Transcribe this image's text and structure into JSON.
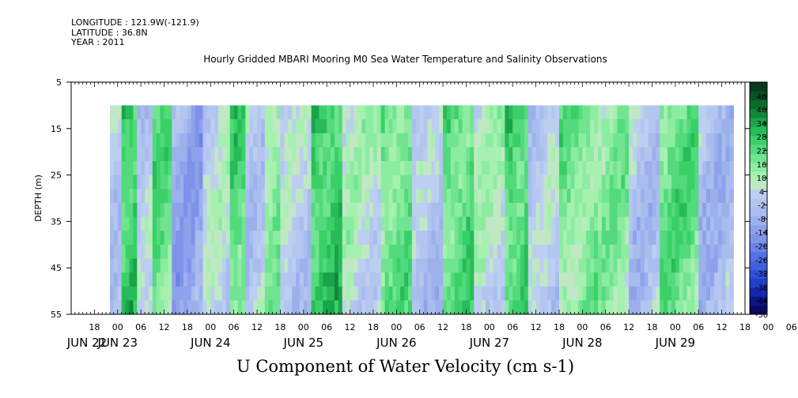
{
  "header": {
    "longitude": "LONGITUDE : 121.9W(-121.9)",
    "latitude": "LATITUDE : 36.8N",
    "year": "YEAR : 2011"
  },
  "colors": {
    "scale": [
      "#0a0a60",
      "#0c1580",
      "#1428a8",
      "#2040c8",
      "#3050d8",
      "#4060e0",
      "#5470e6",
      "#6a82e8",
      "#7e92ea",
      "#8ea2ec",
      "#9cb0ee",
      "#a8bcee",
      "#b4c6f0",
      "#bccff0",
      "#c0e8c4",
      "#a6f0b0",
      "#8cecA0",
      "#70e490",
      "#52da7c",
      "#3ad068",
      "#28bc58",
      "#1aa44a",
      "#10883c",
      "#0c6c30",
      "#0a5226",
      "#083a1c"
    ]
  },
  "chart_data": {
    "type": "heatmap",
    "title": "Hourly Gridded MBARI Mooring M0 Sea Water Temperature and Salinity Observations",
    "xlabel": "U Component of Water Velocity (cm s-1)",
    "ylabel": "DEPTH (m)",
    "ylim": [
      5,
      55
    ],
    "data_depth_range": [
      10,
      55
    ],
    "y_ticks": [
      5,
      15,
      25,
      35,
      45,
      55
    ],
    "x_range_hours": [
      "JUN 22 12:00",
      "JUN 29 18:00"
    ],
    "data_start": "JUN 22 22:00",
    "x_ticks": [
      "18",
      "00",
      "06",
      "12",
      "18",
      "00",
      "06",
      "12",
      "18",
      "00",
      "06",
      "12",
      "18",
      "00",
      "06",
      "12",
      "18",
      "00",
      "06",
      "12",
      "18",
      "00",
      "06",
      "12",
      "18",
      "00",
      "06",
      "12",
      "18",
      "00",
      "06",
      "12"
    ],
    "x_day_labels": [
      "JUN 22",
      "JUN 23",
      "JUN 24",
      "JUN 25",
      "JUN 26",
      "JUN 27",
      "JUN 28",
      "JUN 29"
    ],
    "colorbar": {
      "ticks": [
        46,
        40,
        34,
        28,
        22,
        16,
        10,
        4,
        -2,
        -8,
        -14,
        -20,
        -26,
        -32,
        -38,
        -44,
        -50
      ],
      "range": [
        -50,
        52
      ],
      "step": 3
    },
    "bands": [
      {
        "start": "JUN 22 22:00",
        "end": "JUN 23 01:00",
        "value": -10
      },
      {
        "start": "JUN 23 01:00",
        "end": "JUN 23 05:00",
        "value": 10
      },
      {
        "start": "JUN 23 05:00",
        "end": "JUN 23 09:00",
        "value": -10
      },
      {
        "start": "JUN 23 09:00",
        "end": "JUN 23 14:00",
        "value": 4
      },
      {
        "start": "JUN 23 14:00",
        "end": "JUN 23 22:00",
        "value": -18
      },
      {
        "start": "JUN 23 22:00",
        "end": "JUN 24 05:00",
        "value": -8
      },
      {
        "start": "JUN 24 05:00",
        "end": "JUN 24 09:00",
        "value": 6
      },
      {
        "start": "JUN 24 09:00",
        "end": "JUN 24 14:00",
        "value": -10
      },
      {
        "start": "JUN 24 14:00",
        "end": "JUN 24 18:00",
        "value": 0
      },
      {
        "start": "JUN 24 18:00",
        "end": "JUN 25 02:00",
        "value": -10
      },
      {
        "start": "JUN 25 02:00",
        "end": "JUN 25 10:00",
        "value": 10
      },
      {
        "start": "JUN 25 10:00",
        "end": "JUN 25 20:00",
        "value": -6
      },
      {
        "start": "JUN 25 20:00",
        "end": "JUN 26 04:00",
        "value": 4
      },
      {
        "start": "JUN 26 04:00",
        "end": "JUN 26 12:00",
        "value": -12
      },
      {
        "start": "JUN 26 12:00",
        "end": "JUN 26 20:00",
        "value": 6
      },
      {
        "start": "JUN 26 20:00",
        "end": "JUN 27 04:00",
        "value": -6
      },
      {
        "start": "JUN 27 04:00",
        "end": "JUN 27 10:00",
        "value": 8
      },
      {
        "start": "JUN 27 10:00",
        "end": "JUN 27 18:00",
        "value": -10
      },
      {
        "start": "JUN 27 18:00",
        "end": "JUN 28 04:00",
        "value": 2
      },
      {
        "start": "JUN 28 04:00",
        "end": "JUN 28 12:00",
        "value": 0
      },
      {
        "start": "JUN 28 12:00",
        "end": "JUN 28 20:00",
        "value": -12
      },
      {
        "start": "JUN 28 20:00",
        "end": "JUN 29 06:00",
        "value": 4
      },
      {
        "start": "JUN 29 06:00",
        "end": "JUN 29 15:00",
        "value": -14
      }
    ]
  }
}
